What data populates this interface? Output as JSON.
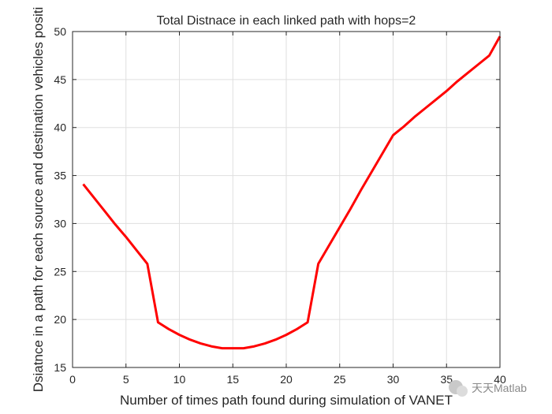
{
  "chart_data": {
    "type": "line",
    "title": "Total Distnace in each linked path with hops=2",
    "xlabel": "Number of times path found during simulation of VANET",
    "ylabel": "Dsiatnce in a path for each source and destination vehicles positi",
    "xlim": [
      0,
      40
    ],
    "ylim": [
      15,
      50
    ],
    "x_ticks": [
      0,
      5,
      10,
      15,
      20,
      25,
      30,
      35,
      40
    ],
    "y_ticks": [
      15,
      20,
      25,
      30,
      35,
      40,
      45,
      50
    ],
    "grid": true,
    "series": [
      {
        "color": "#ff0000",
        "x": [
          1,
          2,
          3,
          4,
          5,
          6,
          7,
          8,
          9,
          10,
          11,
          12,
          13,
          14,
          15,
          16,
          17,
          18,
          19,
          20,
          21,
          22,
          23,
          24,
          25,
          26,
          27,
          28,
          29,
          30,
          31,
          32,
          33,
          34,
          35,
          36,
          37,
          38,
          39,
          40
        ],
        "y": [
          34.1,
          32.7,
          31.3,
          29.9,
          28.6,
          27.2,
          25.8,
          19.7,
          19.0,
          18.4,
          17.9,
          17.5,
          17.2,
          17.0,
          17.0,
          17.0,
          17.2,
          17.5,
          17.9,
          18.4,
          19.0,
          19.7,
          25.8,
          27.7,
          29.6,
          31.5,
          33.5,
          35.4,
          37.3,
          39.2,
          40.1,
          41.1,
          42.0,
          42.9,
          43.8,
          44.8,
          45.7,
          46.6,
          47.5,
          49.5
        ]
      }
    ]
  },
  "watermark": {
    "text": "天天Matlab"
  }
}
